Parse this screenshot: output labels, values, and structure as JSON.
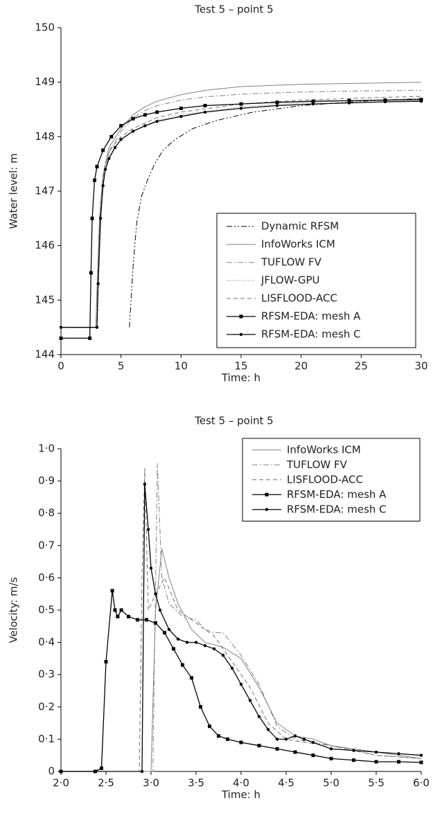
{
  "chart_data": [
    {
      "type": "line",
      "title": "Test 5 – point 5",
      "x_label": "Time: h",
      "y_label": "Water level: m",
      "xlim": [
        0,
        30
      ],
      "ylim": [
        144,
        150
      ],
      "xticks": [
        0,
        5,
        10,
        15,
        20,
        25,
        30
      ],
      "yticks": [
        144,
        145,
        146,
        147,
        148,
        149,
        150
      ],
      "legend": "lower right",
      "series": [
        {
          "name": "Dynamic RFSM",
          "color": "#000000",
          "dash": "dashdotdot",
          "x": [
            5.7,
            6.0,
            6.3,
            6.7,
            7.2,
            7.8,
            8.5,
            9.5,
            11,
            13,
            16,
            20,
            25,
            30
          ],
          "values": [
            144.5,
            145.6,
            146.4,
            146.9,
            147.2,
            147.5,
            147.75,
            147.95,
            148.15,
            148.3,
            148.45,
            148.57,
            148.65,
            148.7
          ]
        },
        {
          "name": "InfoWorks ICM",
          "color": "#808080",
          "dash": "solid",
          "x": [
            0,
            2.9,
            3.0,
            3.2,
            3.5,
            4,
            5,
            6,
            7,
            8,
            10,
            12,
            15,
            20,
            25,
            30
          ],
          "values": [
            144.5,
            144.5,
            145.2,
            146.5,
            147.3,
            147.8,
            148.15,
            148.4,
            148.55,
            148.65,
            148.77,
            148.85,
            148.92,
            148.96,
            148.98,
            149.0
          ]
        },
        {
          "name": "TUFLOW FV",
          "color": "#808080",
          "dash": "dashdot",
          "x": [
            0,
            2.9,
            3.0,
            3.2,
            3.5,
            4,
            5,
            6,
            7,
            8,
            10,
            12,
            15,
            20,
            25,
            30
          ],
          "values": [
            144.5,
            144.5,
            145.0,
            146.3,
            147.2,
            147.7,
            148.1,
            148.35,
            148.48,
            148.57,
            148.67,
            148.73,
            148.78,
            148.82,
            148.84,
            148.85
          ]
        },
        {
          "name": "JFLOW-GPU",
          "color": "#909090",
          "dash": "dotted",
          "x": [
            0,
            3.0,
            3.1,
            3.3,
            3.6,
            4,
            5,
            6,
            8,
            10,
            15,
            20,
            25,
            30
          ],
          "values": [
            144.5,
            144.5,
            145.3,
            146.6,
            147.3,
            147.65,
            147.95,
            148.1,
            148.3,
            148.4,
            148.55,
            148.62,
            148.67,
            148.7
          ]
        },
        {
          "name": "LISFLOOD-ACC",
          "color": "#707070",
          "dash": "dashed",
          "x": [
            0,
            3.0,
            3.1,
            3.3,
            3.6,
            4,
            5,
            6,
            8,
            10,
            15,
            20,
            25,
            30
          ],
          "values": [
            144.5,
            144.5,
            145.5,
            146.8,
            147.4,
            147.75,
            148.0,
            148.15,
            148.35,
            148.45,
            148.6,
            148.67,
            148.71,
            148.74
          ]
        },
        {
          "name": "RFSM-EDA: mesh A",
          "color": "#000000",
          "dash": "solid",
          "marker": "square",
          "x": [
            0,
            2.4,
            2.5,
            2.6,
            2.8,
            3.0,
            3.5,
            4.2,
            5,
            6,
            7,
            8,
            10,
            12,
            15,
            18,
            21,
            24,
            27,
            30
          ],
          "values": [
            144.3,
            144.3,
            145.5,
            146.5,
            147.2,
            147.45,
            147.75,
            148.0,
            148.2,
            148.33,
            148.4,
            148.45,
            148.52,
            148.57,
            148.6,
            148.63,
            148.65,
            148.66,
            148.67,
            148.68
          ]
        },
        {
          "name": "RFSM-EDA: mesh C",
          "color": "#000000",
          "dash": "solid",
          "marker": "circle",
          "x": [
            0,
            3.0,
            3.1,
            3.3,
            3.5,
            3.7,
            4,
            4.5,
            5,
            6,
            7,
            8,
            10,
            12,
            15,
            18,
            21,
            24,
            27,
            30
          ],
          "values": [
            144.5,
            144.5,
            145.3,
            146.5,
            147.1,
            147.4,
            147.6,
            147.8,
            147.95,
            148.1,
            148.2,
            148.28,
            148.37,
            148.45,
            148.52,
            148.57,
            148.6,
            148.62,
            148.64,
            148.65
          ]
        }
      ]
    },
    {
      "type": "line",
      "title": "Test 5 – point 5",
      "x_label": "Time: h",
      "y_label": "Velocity: m/s",
      "xlim": [
        2,
        6
      ],
      "ylim": [
        0,
        1
      ],
      "xticks": [
        {
          "value": 2,
          "label": "2·0"
        },
        {
          "value": 2.5,
          "label": "2·5"
        },
        {
          "value": 3,
          "label": "3·0"
        },
        {
          "value": 3.5,
          "label": "3·5"
        },
        {
          "value": 4,
          "label": "4·0"
        },
        {
          "value": 4.5,
          "label": "4·5"
        },
        {
          "value": 5,
          "label": "5·0"
        },
        {
          "value": 5.5,
          "label": "5·5"
        },
        {
          "value": 6,
          "label": "6·0"
        }
      ],
      "yticks": [
        0,
        {
          "value": 0.1,
          "label": "0·1"
        },
        {
          "value": 0.2,
          "label": "0·2"
        },
        {
          "value": 0.3,
          "label": "0·3"
        },
        {
          "value": 0.4,
          "label": "0·4"
        },
        {
          "value": 0.5,
          "label": "0·5"
        },
        {
          "value": 0.6,
          "label": "0·6"
        },
        {
          "value": 0.7,
          "label": "0·7"
        },
        {
          "value": 0.8,
          "label": "0·8"
        },
        {
          "value": 0.9,
          "label": "0·9"
        },
        {
          "value": 1,
          "label": "1·0"
        }
      ],
      "legend": "upper right",
      "series": [
        {
          "name": "InfoWorks ICM",
          "color": "#808080",
          "dash": "solid",
          "x": [
            2.0,
            3.0,
            3.05,
            3.12,
            3.2,
            3.3,
            3.45,
            3.6,
            3.8,
            4.0,
            4.2,
            4.4,
            4.6,
            4.8,
            5.0,
            5.5,
            6.0
          ],
          "values": [
            0,
            0,
            0.5,
            0.69,
            0.6,
            0.52,
            0.44,
            0.4,
            0.385,
            0.35,
            0.26,
            0.15,
            0.11,
            0.1,
            0.08,
            0.06,
            0.04
          ]
        },
        {
          "name": "TUFLOW FV",
          "color": "#808080",
          "dash": "dashdot",
          "x": [
            2.0,
            3.02,
            3.07,
            3.12,
            3.2,
            3.35,
            3.5,
            3.6,
            3.7,
            3.8,
            4.0,
            4.2,
            4.4,
            4.6,
            5.0,
            5.5,
            6.0
          ],
          "values": [
            0,
            0,
            0.955,
            0.6,
            0.52,
            0.48,
            0.47,
            0.44,
            0.43,
            0.43,
            0.36,
            0.27,
            0.14,
            0.1,
            0.08,
            0.05,
            0.04
          ]
        },
        {
          "name": "LISFLOOD-ACC",
          "color": "#707070",
          "dash": "dashed",
          "x": [
            2.0,
            2.87,
            2.9,
            2.93,
            2.97,
            3.05,
            3.15,
            3.3,
            3.5,
            3.7,
            3.9,
            4.1,
            4.3,
            4.5,
            4.7,
            5.0,
            5.5,
            6.0
          ],
          "values": [
            0,
            0,
            0.6,
            0.94,
            0.5,
            0.55,
            0.6,
            0.5,
            0.46,
            0.42,
            0.34,
            0.26,
            0.15,
            0.1,
            0.09,
            0.08,
            0.05,
            0.04
          ]
        },
        {
          "name": "RFSM-EDA: mesh A",
          "color": "#000000",
          "dash": "solid",
          "marker": "square",
          "x": [
            2.0,
            2.38,
            2.45,
            2.5,
            2.57,
            2.6,
            2.63,
            2.67,
            2.75,
            2.85,
            2.95,
            3.05,
            3.15,
            3.25,
            3.35,
            3.45,
            3.55,
            3.65,
            3.75,
            3.85,
            4.0,
            4.2,
            4.4,
            4.6,
            4.8,
            5.0,
            5.25,
            5.5,
            5.75,
            6.0
          ],
          "values": [
            0,
            0,
            0.01,
            0.34,
            0.56,
            0.5,
            0.48,
            0.5,
            0.48,
            0.47,
            0.47,
            0.46,
            0.43,
            0.38,
            0.33,
            0.29,
            0.2,
            0.14,
            0.11,
            0.1,
            0.09,
            0.08,
            0.07,
            0.06,
            0.05,
            0.04,
            0.035,
            0.03,
            0.03,
            0.028
          ]
        },
        {
          "name": "RFSM-EDA: mesh C",
          "color": "#000000",
          "dash": "solid",
          "marker": "circle",
          "x": [
            2.0,
            2.9,
            2.93,
            2.97,
            3.0,
            3.05,
            3.1,
            3.2,
            3.3,
            3.4,
            3.5,
            3.6,
            3.7,
            3.8,
            3.9,
            4.0,
            4.1,
            4.2,
            4.3,
            4.4,
            4.5,
            4.6,
            4.7,
            4.8,
            5.0,
            5.25,
            5.5,
            5.75,
            6.0
          ],
          "values": [
            0,
            0,
            0.89,
            0.75,
            0.63,
            0.55,
            0.5,
            0.44,
            0.41,
            0.4,
            0.4,
            0.39,
            0.38,
            0.36,
            0.32,
            0.27,
            0.22,
            0.17,
            0.13,
            0.1,
            0.1,
            0.11,
            0.1,
            0.09,
            0.07,
            0.065,
            0.06,
            0.055,
            0.05
          ]
        }
      ]
    }
  ]
}
